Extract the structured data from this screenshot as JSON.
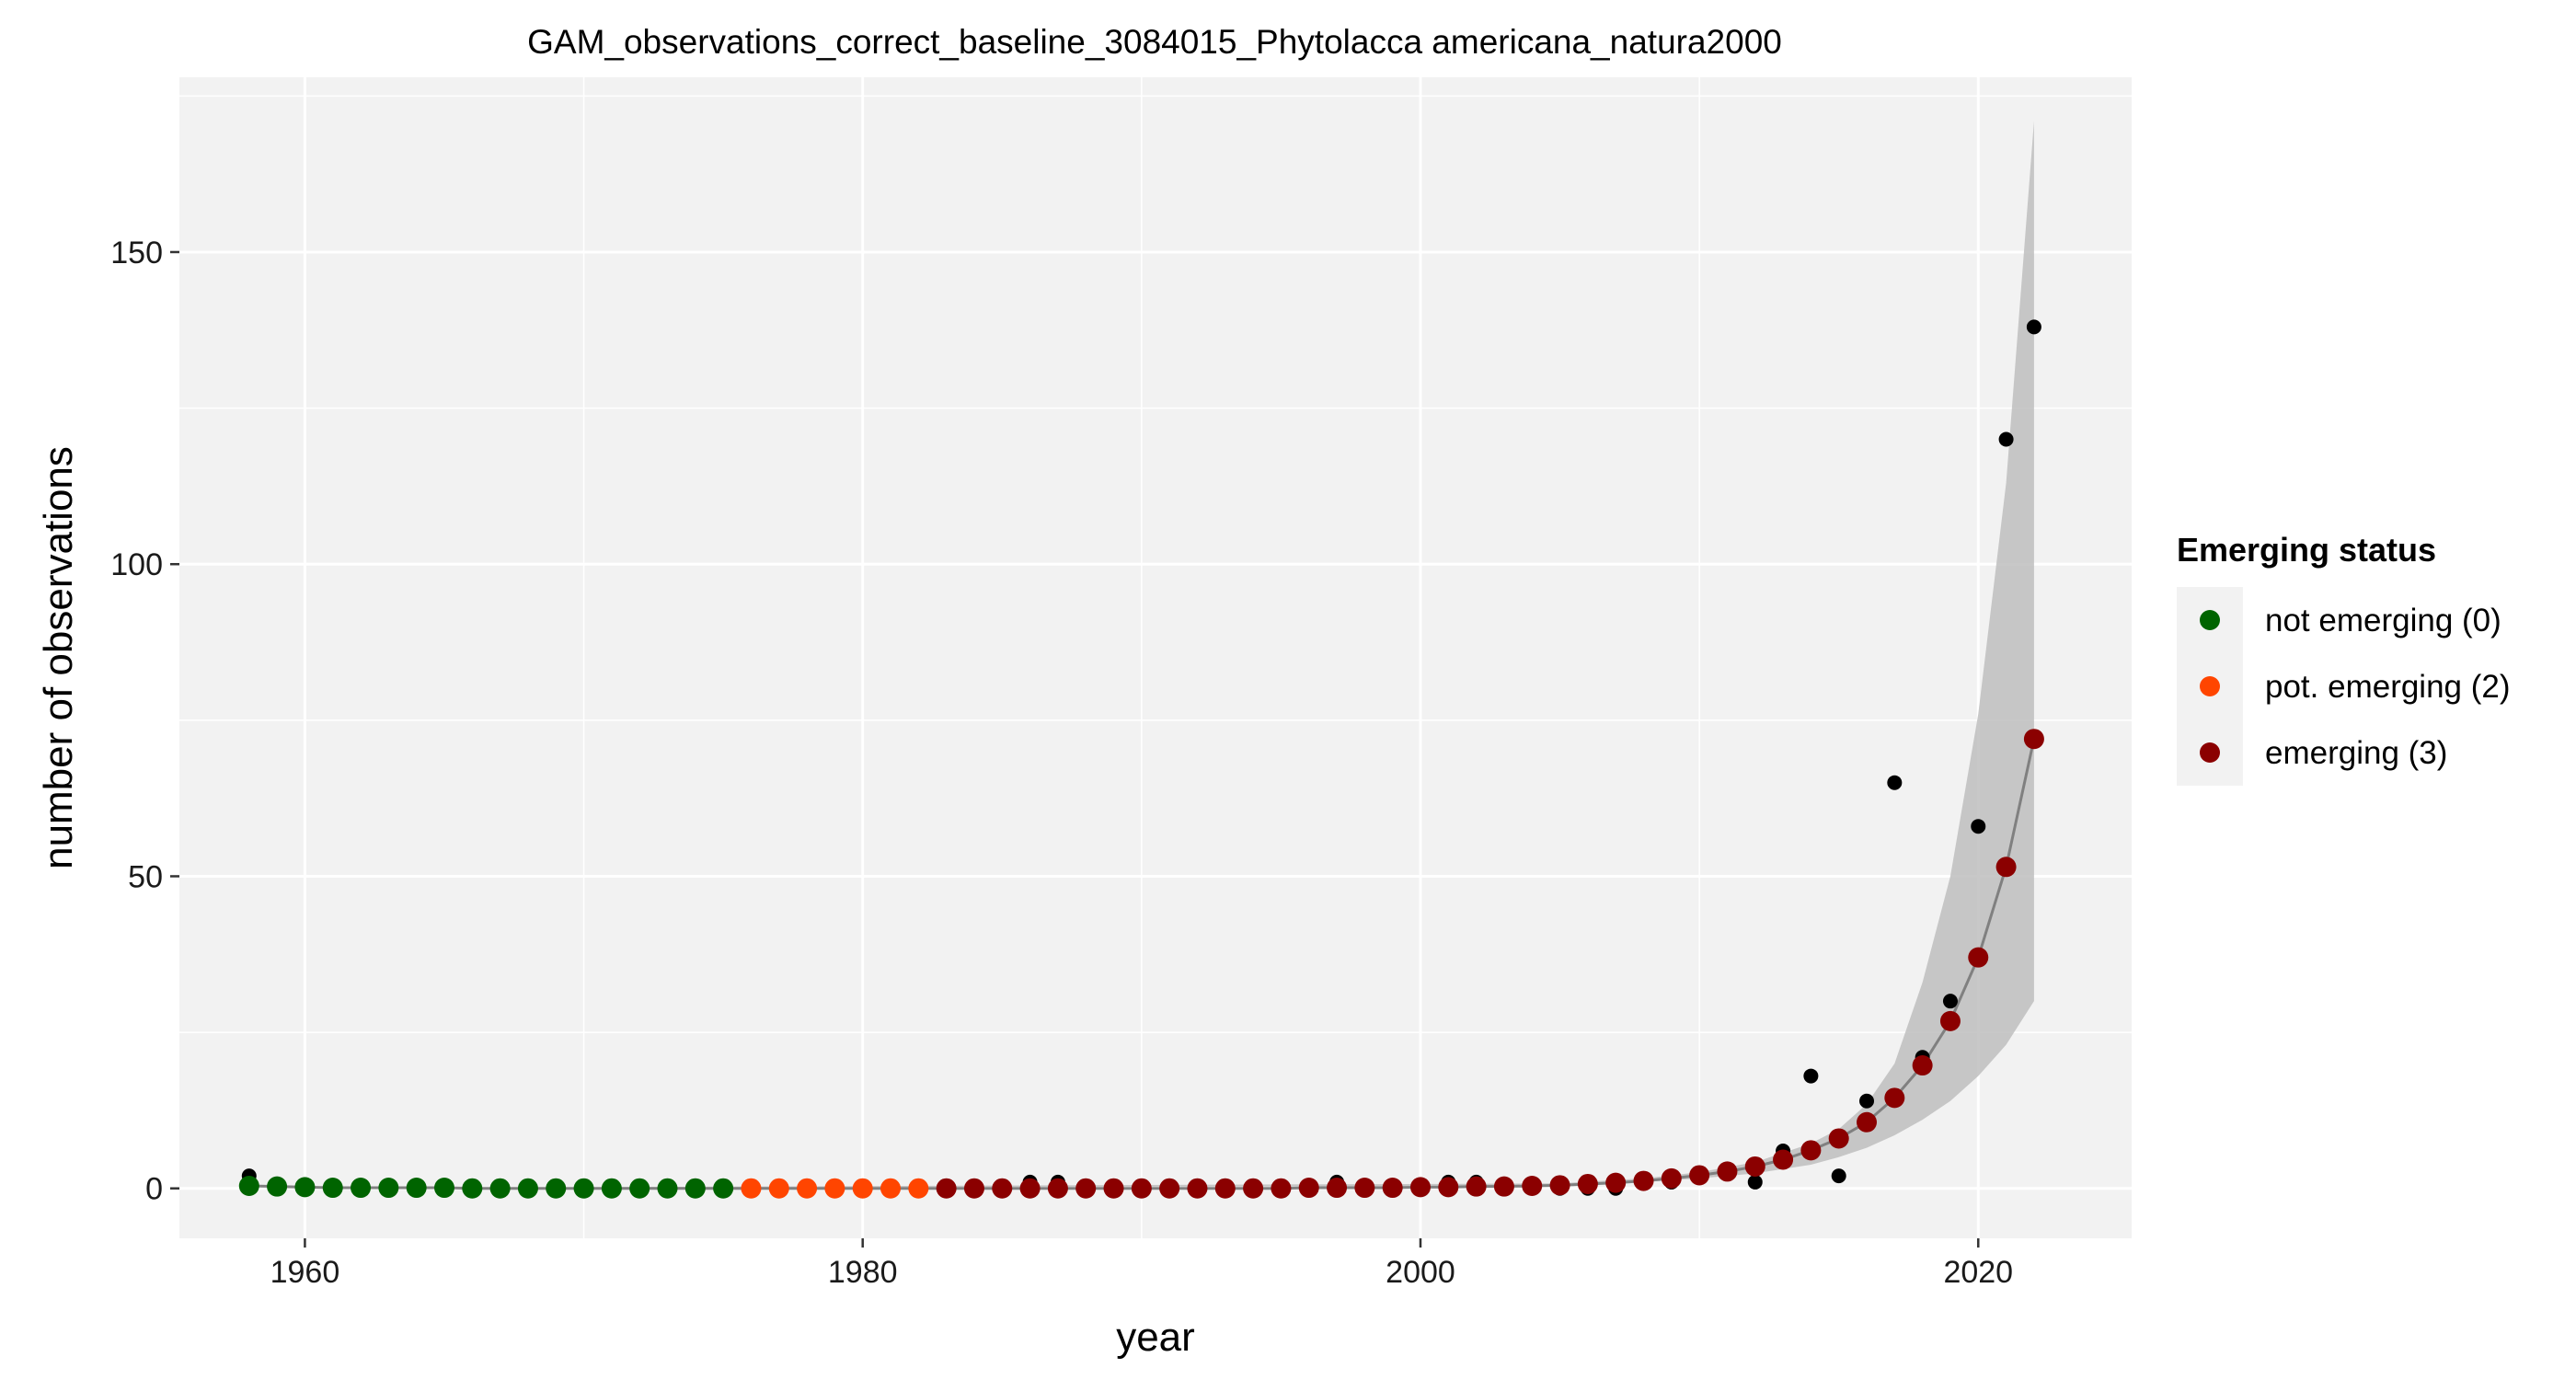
{
  "chart_data": {
    "type": "scatter",
    "title": "GAM_observations_correct_baseline_3084015_Phytolacca americana_natura2000",
    "xlabel": "year",
    "ylabel": "number of observations",
    "xlim": [
      1955.5,
      2025.5
    ],
    "ylim": [
      -8,
      178
    ],
    "x_ticks": [
      1960,
      1980,
      2000,
      2020
    ],
    "x_tick_labels": [
      "1960",
      "1980",
      "2000",
      "2020"
    ],
    "y_ticks": [
      0,
      50,
      100,
      150
    ],
    "y_tick_labels": [
      "0",
      "50",
      "100",
      "150"
    ],
    "grid": true,
    "legend": {
      "title": "Emerging status",
      "position": "right",
      "entries": [
        {
          "label": "not emerging (0)",
          "color": "#006400"
        },
        {
          "label": "pot. emerging (2)",
          "color": "#ff4500"
        },
        {
          "label": "emerging (3)",
          "color": "#8b0000"
        }
      ]
    },
    "colors": {
      "panel_background": "#f2f2f2",
      "grid": "#ffffff",
      "ribbon": "#bebebe",
      "fit_line": "#808080",
      "observed": "#000000",
      "not_emerging": "#006400",
      "pot_emerging": "#ff4500",
      "emerging": "#8b0000"
    },
    "observed": {
      "x": [
        1958,
        1986,
        1987,
        1997,
        2001,
        2002,
        2005,
        2006,
        2007,
        2008,
        2009,
        2010,
        2011,
        2012,
        2013,
        2014,
        2015,
        2016,
        2017,
        2018,
        2019,
        2020,
        2021,
        2022
      ],
      "y": [
        2,
        1,
        1,
        1,
        1,
        1,
        0,
        0,
        0,
        1,
        1,
        2,
        3,
        1,
        6,
        18,
        2,
        14,
        65,
        21,
        30,
        58,
        120,
        138
      ]
    },
    "fitted": {
      "x": [
        1958,
        1959,
        1960,
        1961,
        1962,
        1963,
        1964,
        1965,
        1966,
        1967,
        1968,
        1969,
        1970,
        1971,
        1972,
        1973,
        1974,
        1975,
        1976,
        1977,
        1978,
        1979,
        1980,
        1981,
        1982,
        1983,
        1984,
        1985,
        1986,
        1987,
        1988,
        1989,
        1990,
        1991,
        1992,
        1993,
        1994,
        1995,
        1996,
        1997,
        1998,
        1999,
        2000,
        2001,
        2002,
        2003,
        2004,
        2005,
        2006,
        2007,
        2008,
        2009,
        2010,
        2011,
        2012,
        2013,
        2014,
        2015,
        2016,
        2017,
        2018,
        2019,
        2020,
        2021,
        2022
      ],
      "y": [
        0.4,
        0.3,
        0.2,
        0.1,
        0.1,
        0.1,
        0.1,
        0.1,
        0,
        0,
        0,
        0,
        0,
        0,
        0,
        0,
        0,
        0,
        0,
        0,
        0,
        0,
        0,
        0,
        0,
        0,
        0,
        0,
        0,
        0,
        0,
        0,
        0,
        0,
        0,
        0,
        0,
        0,
        0.1,
        0.1,
        0.1,
        0.1,
        0.2,
        0.2,
        0.3,
        0.3,
        0.4,
        0.5,
        0.7,
        0.9,
        1.2,
        1.6,
        2.1,
        2.7,
        3.5,
        4.6,
        6.1,
        8,
        10.6,
        14.5,
        19.7,
        26.8,
        37,
        51.5,
        72
      ],
      "status": [
        0,
        0,
        0,
        0,
        0,
        0,
        0,
        0,
        0,
        0,
        0,
        0,
        0,
        0,
        0,
        0,
        0,
        0,
        2,
        2,
        2,
        2,
        2,
        2,
        2,
        3,
        3,
        3,
        3,
        3,
        3,
        3,
        3,
        3,
        3,
        3,
        3,
        3,
        3,
        3,
        3,
        3,
        3,
        3,
        3,
        3,
        3,
        3,
        3,
        3,
        3,
        3,
        3,
        3,
        3,
        3,
        3,
        3,
        3,
        3,
        3,
        3,
        3,
        3,
        3
      ]
    },
    "ribbon": {
      "x": [
        1958,
        2005,
        2008,
        2010,
        2012,
        2014,
        2015,
        2016,
        2017,
        2018,
        2019,
        2020,
        2021,
        2022
      ],
      "lower": [
        0,
        0.4,
        1,
        1.6,
        2.4,
        3.8,
        5,
        6.5,
        8.5,
        11,
        14,
        18,
        23,
        30
      ],
      "upper": [
        0,
        0.8,
        1.6,
        2.6,
        4.2,
        7.2,
        9.5,
        13.5,
        20,
        33,
        50,
        76,
        113,
        171
      ]
    }
  }
}
